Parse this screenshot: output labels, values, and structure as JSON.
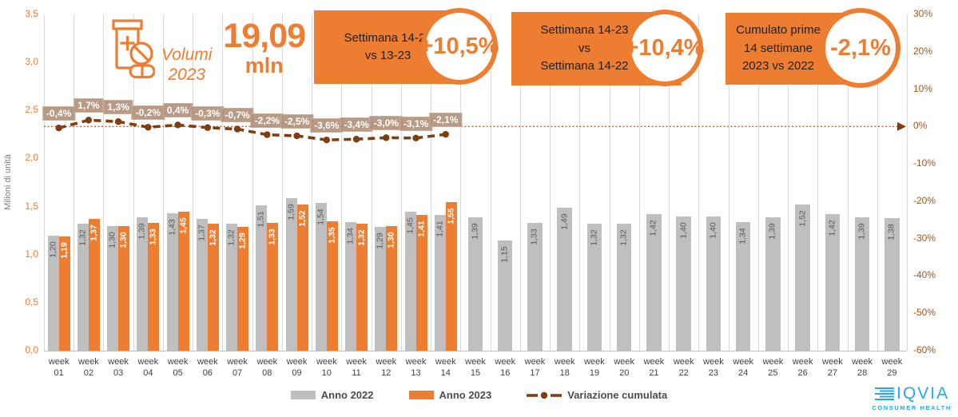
{
  "header": {
    "caption_line1": "Volumi",
    "caption_line2": "2023",
    "kpi_value": "19,09",
    "kpi_unit": "mln"
  },
  "callouts": [
    {
      "lines": [
        "Settimana 14-23",
        "vs 13-23"
      ],
      "value": "+10,5%"
    },
    {
      "lines": [
        "Settimana 14-23",
        "vs",
        "Settimana 14-22"
      ],
      "value": "+10,4%"
    },
    {
      "lines": [
        "Cumulato prime",
        "14 settimane",
        "2023 vs 2022"
      ],
      "value": "-2,1%"
    }
  ],
  "chart_data": {
    "type": "bar",
    "categories": [
      "week 01",
      "week 02",
      "week 03",
      "week 04",
      "week 05",
      "week 06",
      "week 07",
      "week 08",
      "week 09",
      "week 10",
      "week 11",
      "week 12",
      "week 13",
      "week 14",
      "week 15",
      "week 16",
      "week 17",
      "week 18",
      "week 19",
      "week 20",
      "week 21",
      "week 22",
      "week 23",
      "week 24",
      "week 25",
      "week 26",
      "week 27",
      "week 28",
      "week 29"
    ],
    "series": [
      {
        "name": "Anno 2022",
        "color": "#BFBFBF",
        "values": [
          1.2,
          1.32,
          1.3,
          1.39,
          1.43,
          1.37,
          1.32,
          1.51,
          1.59,
          1.54,
          1.34,
          1.29,
          1.45,
          1.41,
          1.39,
          1.15,
          1.33,
          1.49,
          1.32,
          1.32,
          1.42,
          1.4,
          1.4,
          1.34,
          1.39,
          1.52,
          1.42,
          1.39,
          1.38
        ]
      },
      {
        "name": "Anno 2023",
        "color": "#ED7D31",
        "values": [
          1.19,
          1.37,
          1.3,
          1.33,
          1.45,
          1.32,
          1.29,
          1.33,
          1.52,
          1.35,
          1.32,
          1.3,
          1.41,
          1.55,
          null,
          null,
          null,
          null,
          null,
          null,
          null,
          null,
          null,
          null,
          null,
          null,
          null,
          null,
          null
        ]
      }
    ],
    "line_series": {
      "name": "Variazione cumulata",
      "color": "#7F3E10",
      "values_pct": [
        -0.4,
        1.7,
        1.3,
        -0.2,
        0.4,
        -0.3,
        -0.7,
        -2.2,
        -2.5,
        -3.6,
        -3.4,
        -3.0,
        -3.1,
        -2.1
      ],
      "labels": [
        "-0,4%",
        "1,7%",
        "1,3%",
        "-0,2%",
        "0,4%",
        "-0,3%",
        "-0,7%",
        "-2,2%",
        "-2,5%",
        "-3,6%",
        "-3,4%",
        "-3,0%",
        "-3,1%",
        "-2,1%"
      ]
    },
    "left_axis": {
      "title": "Milioni di unità",
      "min": 0,
      "max": 3.5,
      "ticks": [
        "0,0",
        "0,5",
        "1,0",
        "1,5",
        "2,0",
        "2,5",
        "3,0",
        "3,5"
      ]
    },
    "right_axis": {
      "min": -60,
      "max": 30,
      "ticks": [
        "30%",
        "20%",
        "10%",
        "0%",
        "-10%",
        "-20%",
        "-30%",
        "-40%",
        "-50%",
        "-60%"
      ],
      "zero_line": true
    },
    "grid": "vertical",
    "legend_position": "bottom"
  },
  "legend": [
    {
      "label": "Anno 2022",
      "color": "#BFBFBF",
      "marker": "bar"
    },
    {
      "label": "Anno 2023",
      "color": "#ED7D31",
      "marker": "bar"
    },
    {
      "label": "Variazione cumulata",
      "color": "#7F3E10",
      "marker": "dash-dot-line"
    }
  ],
  "logo": {
    "brand": "IQVIA",
    "subtitle": "CONSUMER HEALTH",
    "color": "#27A9E1"
  },
  "colors": {
    "accent_orange": "#ED7D31",
    "bar_gray": "#BFBFBF",
    "line_brown": "#7F3E10",
    "pct_label_bg": "#B2927C",
    "left_axis_text": "#ED7D31",
    "right_axis_text": "#A0561B",
    "gridline": "#D9D9D9",
    "iqvia_blue": "#27A9E1"
  }
}
